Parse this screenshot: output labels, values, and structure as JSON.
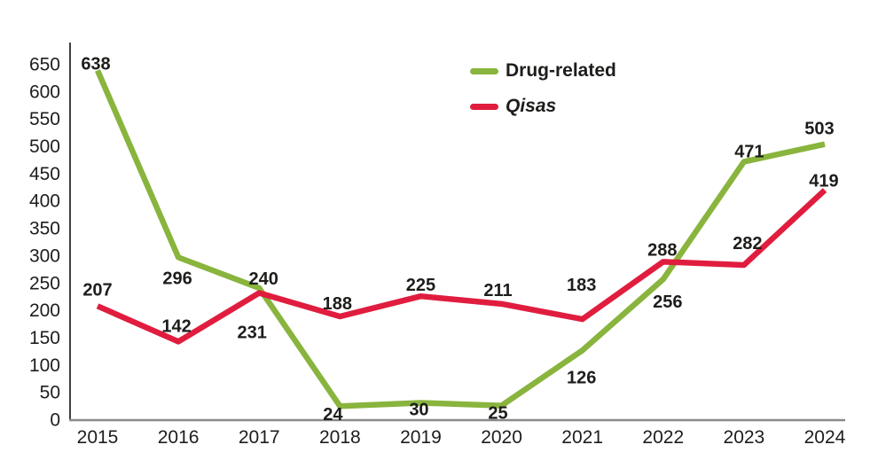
{
  "chart_data": {
    "type": "line",
    "title": "",
    "xlabel": "",
    "ylabel": "",
    "categories": [
      "2015",
      "2016",
      "2017",
      "2018",
      "2019",
      "2020",
      "2021",
      "2022",
      "2023",
      "2024"
    ],
    "ylim": [
      0,
      650
    ],
    "ytick_step": 50,
    "yticks": [
      0,
      50,
      100,
      150,
      200,
      250,
      300,
      350,
      400,
      450,
      500,
      550,
      600,
      650
    ],
    "grid": false,
    "legend_position": "top-center",
    "series": [
      {
        "name": "Drug-related",
        "color": "#89b43d",
        "italic": false,
        "values": [
          638,
          296,
          240,
          24,
          30,
          25,
          126,
          256,
          471,
          503
        ],
        "label_offsets": [
          [
            -2,
            -8
          ],
          [
            -1,
            23
          ],
          [
            5,
            -11
          ],
          [
            -8,
            9
          ],
          [
            -2,
            7
          ],
          [
            -4,
            8
          ],
          [
            -1,
            30
          ],
          [
            5,
            25
          ],
          [
            6,
            -12
          ],
          [
            -6,
            -18
          ]
        ]
      },
      {
        "name": "Qisas",
        "color": "#e01d3e",
        "italic": true,
        "values": [
          207,
          142,
          231,
          188,
          225,
          211,
          183,
          288,
          282,
          419
        ],
        "label_offsets": [
          [
            0,
            -19
          ],
          [
            -2,
            -18
          ],
          [
            -8,
            44
          ],
          [
            -3,
            -15
          ],
          [
            0,
            -13
          ],
          [
            -4,
            -16
          ],
          [
            -1,
            -39
          ],
          [
            -1,
            -14
          ],
          [
            4,
            -25
          ],
          [
            -1,
            -11
          ]
        ]
      }
    ]
  },
  "colors": {
    "background": "#ffffff",
    "axis_vertical": "#3f3f3f",
    "axis_horizontal": "#8a8a8a",
    "text": "#1d1d1b"
  }
}
